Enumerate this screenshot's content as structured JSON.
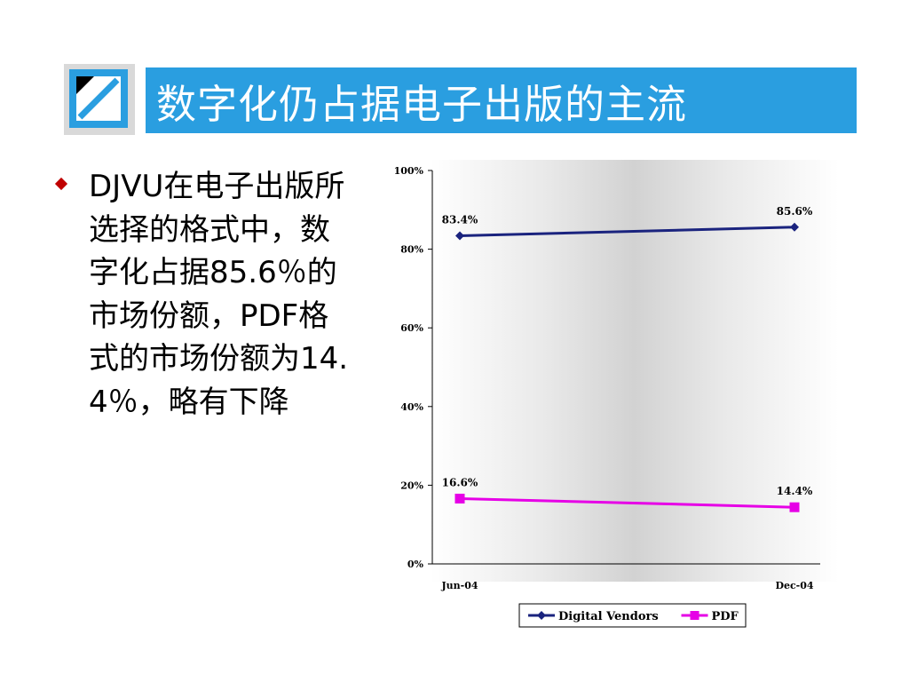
{
  "title": "数字化仍占据电子出版的主流",
  "bullet": {
    "text": "DJVU在电子出版所选择的格式中，数字化占据85.6％的市场份额，PDF格式的市场份额为14.4％，略有下降"
  },
  "chart_data": {
    "type": "line",
    "categories": [
      "Jun-04",
      "Dec-04"
    ],
    "series": [
      {
        "name": "Digital Vendors",
        "values": [
          83.4,
          85.6
        ],
        "color": "#1a237e",
        "marker": "diamond",
        "labels": [
          "83.4%",
          "85.6%"
        ]
      },
      {
        "name": "PDF",
        "values": [
          16.6,
          14.4
        ],
        "color": "#e600e6",
        "marker": "square",
        "labels": [
          "16.6%",
          "14.4%"
        ]
      }
    ],
    "y_ticks": [
      "0%",
      "20%",
      "40%",
      "60%",
      "80%",
      "100%"
    ],
    "ylim": [
      0,
      100
    ],
    "legend_placement": "bottom"
  }
}
